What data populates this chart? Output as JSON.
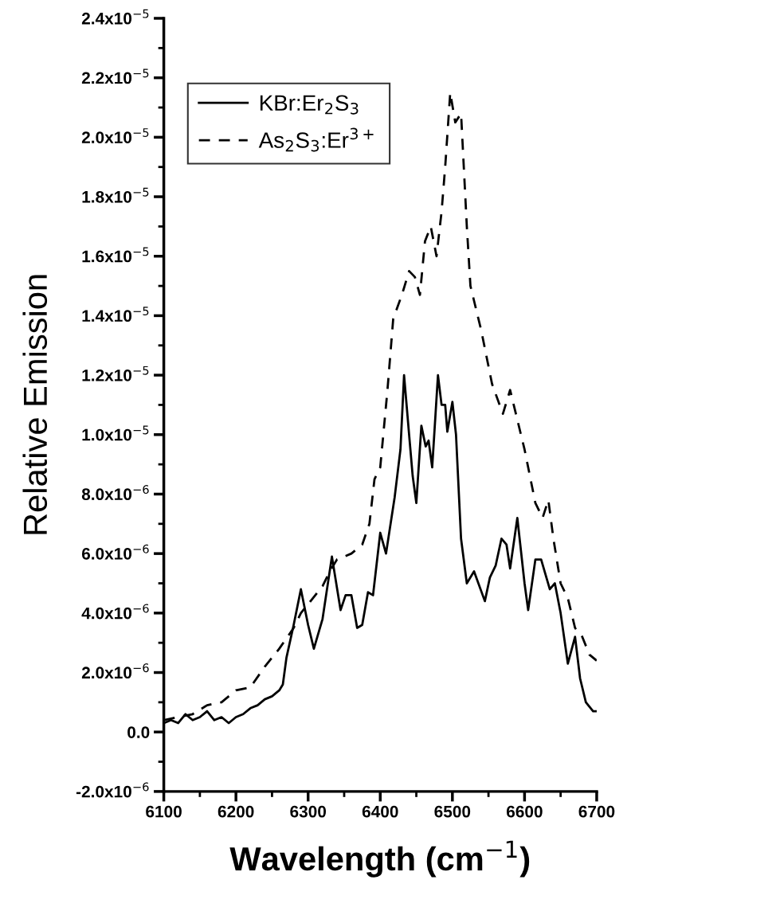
{
  "chart_data": {
    "type": "line",
    "xlabel": "Wavelength (cm$^{−1}$)",
    "ylabel": "Relative Emission",
    "xlim": [
      6100,
      6700
    ],
    "xticks": [
      6100,
      6200,
      6300,
      6400,
      6500,
      6600,
      6700
    ],
    "ylim": [
      -2e-06,
      2.4e-05
    ],
    "yticks": [
      {
        "value": -2e-06,
        "label": "-2.0x10$^{−6}$"
      },
      {
        "value": 0,
        "label": "0.0"
      },
      {
        "value": 2e-06,
        "label": "2.0x10$^{−6}$"
      },
      {
        "value": 4e-06,
        "label": "4.0x10$^{−6}$"
      },
      {
        "value": 6e-06,
        "label": "6.0x10$^{−6}$"
      },
      {
        "value": 8e-06,
        "label": "8.0x10$^{−6}$"
      },
      {
        "value": 1e-05,
        "label": "1.0x10$^{−5}$"
      },
      {
        "value": 1.2e-05,
        "label": "1.2x10$^{−5}$"
      },
      {
        "value": 1.4e-05,
        "label": "1.4x10$^{−5}$"
      },
      {
        "value": 1.6e-05,
        "label": "1.6x10$^{−5}$"
      },
      {
        "value": 1.8e-05,
        "label": "1.8x10$^{−5}$"
      },
      {
        "value": 2e-05,
        "label": "2.0x10$^{−5}$"
      },
      {
        "value": 2.2e-05,
        "label": "2.2x10$^{−5}$"
      },
      {
        "value": 2.4e-05,
        "label": "2.4x10$^{−5}$"
      }
    ],
    "grid": false,
    "legend": "top left",
    "marker": "none",
    "series": [
      {
        "name": "KBr:Er$_{2}$S$_{3}$",
        "color": "#000000",
        "line_style": "solid",
        "x": [
          6100,
          6110,
          6120,
          6130,
          6140,
          6150,
          6160,
          6170,
          6180,
          6190,
          6200,
          6210,
          6220,
          6230,
          6240,
          6250,
          6260,
          6265,
          6270,
          6280,
          6290,
          6300,
          6308,
          6320,
          6333,
          6345,
          6352,
          6360,
          6368,
          6375,
          6383,
          6390,
          6400,
          6408,
          6420,
          6428,
          6433,
          6440,
          6445,
          6450,
          6457,
          6463,
          6467,
          6472,
          6480,
          6485,
          6490,
          6493,
          6500,
          6505,
          6512,
          6520,
          6530,
          6545,
          6552,
          6560,
          6568,
          6575,
          6580,
          6590,
          6600,
          6605,
          6615,
          6623,
          6635,
          6642,
          6650,
          6660,
          6670,
          6677,
          6685,
          6695,
          6700
        ],
        "values": [
          3e-07,
          4e-07,
          3e-07,
          6e-07,
          4e-07,
          5e-07,
          7e-07,
          4e-07,
          5e-07,
          3e-07,
          5e-07,
          6e-07,
          8e-07,
          9e-07,
          1.1e-06,
          1.2e-06,
          1.4e-06,
          1.6e-06,
          2.5e-06,
          3.6e-06,
          4.8e-06,
          3.6e-06,
          2.8e-06,
          3.8e-06,
          5.9e-06,
          4.1e-06,
          4.6e-06,
          4.6e-06,
          3.5e-06,
          3.6e-06,
          4.7e-06,
          4.6e-06,
          6.7e-06,
          6e-06,
          7.9e-06,
          9.5e-06,
          1.2e-05,
          1e-05,
          8.6e-06,
          7.7e-06,
          1.03e-05,
          9.6e-06,
          9.8e-06,
          8.9e-06,
          1.2e-05,
          1.1e-05,
          1.1e-05,
          1.01e-05,
          1.11e-05,
          1e-05,
          6.5e-06,
          5e-06,
          5.4e-06,
          4.4e-06,
          5.2e-06,
          5.6e-06,
          6.5e-06,
          6.3e-06,
          5.5e-06,
          7.2e-06,
          5e-06,
          4.1e-06,
          5.8e-06,
          5.8e-06,
          4.8e-06,
          5e-06,
          4e-06,
          2.3e-06,
          3.2e-06,
          1.8e-06,
          1e-06,
          7e-07,
          7e-07
        ]
      },
      {
        "name": "As$_{2}$S$_{3}$:Er$^{3+}$",
        "color": "#000000",
        "line_style": "dashed",
        "x": [
          6100,
          6120,
          6140,
          6160,
          6180,
          6200,
          6220,
          6240,
          6260,
          6280,
          6290,
          6300,
          6310,
          6320,
          6330,
          6340,
          6360,
          6375,
          6385,
          6392,
          6400,
          6410,
          6418,
          6430,
          6440,
          6448,
          6455,
          6462,
          6470,
          6478,
          6485,
          6490,
          6497,
          6504,
          6512,
          6520,
          6525,
          6540,
          6555,
          6570,
          6580,
          6590,
          6600,
          6615,
          6625,
          6633,
          6640,
          6650,
          6660,
          6670,
          6680,
          6690,
          6700
        ],
        "values": [
          4e-07,
          5e-07,
          6e-07,
          9e-07,
          1e-06,
          1.4e-06,
          1.5e-06,
          2.2e-06,
          2.8e-06,
          3.5e-06,
          4e-06,
          4.3e-06,
          4.6e-06,
          4.9e-06,
          5.4e-06,
          5.8e-06,
          6e-06,
          6.3e-06,
          7e-06,
          8.5e-06,
          8.9e-06,
          1.15e-05,
          1.39e-05,
          1.47e-05,
          1.55e-05,
          1.53e-05,
          1.47e-05,
          1.65e-05,
          1.7e-05,
          1.6e-05,
          1.75e-05,
          1.9e-05,
          2.15e-05,
          2.05e-05,
          2.08e-05,
          1.7e-05,
          1.5e-05,
          1.35e-05,
          1.17e-05,
          1.07e-05,
          1.15e-05,
          1.05e-05,
          9.5e-06,
          7.7e-06,
          7.2e-06,
          7.8e-06,
          6.5e-06,
          5e-06,
          4.5e-06,
          3.5e-06,
          3.2e-06,
          2.6e-06,
          2.4e-06
        ]
      }
    ]
  }
}
